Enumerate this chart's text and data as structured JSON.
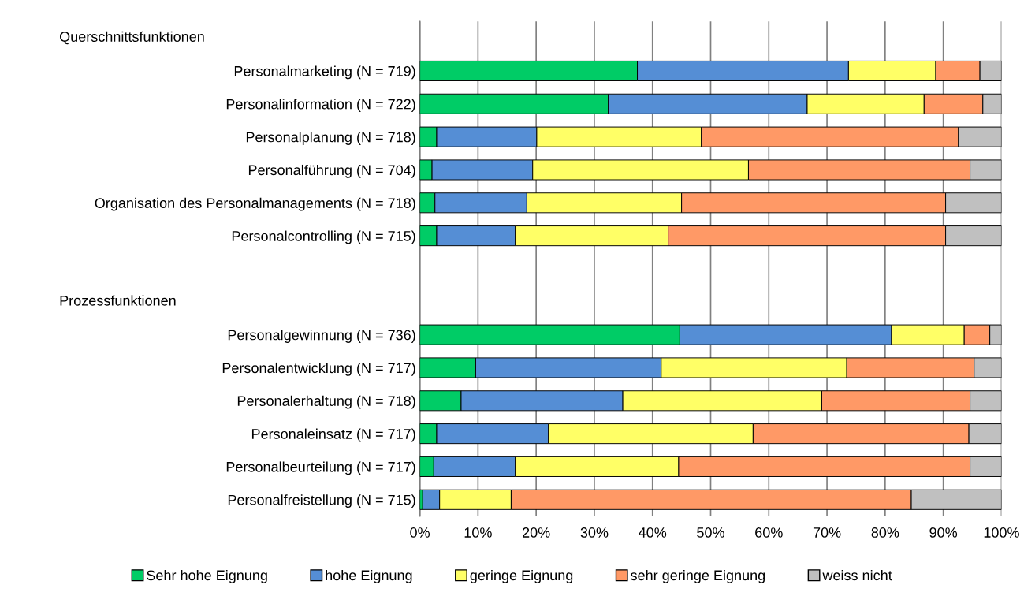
{
  "chart_data": {
    "type": "bar",
    "orientation": "horizontal",
    "stacked": true,
    "annotations": [
      "Querschnittsfunktionen",
      "Prozessfunktionen"
    ],
    "categories": [
      null,
      "Personalmarketing (N = 719)",
      "Personalinformation (N = 722)",
      "Personalplanung (N = 718)",
      "Personalführung (N = 704)",
      "Organisation des Personalmanagements (N = 718)",
      "Personalcontrolling (N = 715)",
      null,
      null,
      "Personalgewinnung (N = 736)",
      "Personalentwicklung (N = 717)",
      "Personalerhaltung (N = 718)",
      "Personaleinsatz (N = 717)",
      "Personalbeurteilung (N = 717)",
      "Personalfreistellung (N = 715)"
    ],
    "series": [
      {
        "name": "Sehr hohe Eignung",
        "color": "#00cc66",
        "values": [
          null,
          37.4,
          32.4,
          2.9,
          2.1,
          2.6,
          2.9,
          null,
          null,
          44.7,
          9.6,
          7.1,
          2.9,
          2.4,
          0.5
        ]
      },
      {
        "name": "hohe Eignung",
        "color": "#558ed5",
        "values": [
          null,
          36.3,
          34.2,
          17.2,
          17.3,
          15.8,
          13.5,
          null,
          null,
          36.4,
          31.9,
          27.8,
          19.2,
          14.0,
          2.9
        ]
      },
      {
        "name": "geringe Eignung",
        "color": "#ffff66",
        "values": [
          null,
          15.0,
          20.1,
          28.3,
          37.1,
          26.6,
          26.3,
          null,
          null,
          12.5,
          31.9,
          34.2,
          35.2,
          28.1,
          12.3
        ]
      },
      {
        "name": "sehr geringe Eignung",
        "color": "#ff9966",
        "values": [
          null,
          7.6,
          10.1,
          44.2,
          38.1,
          45.4,
          47.7,
          null,
          null,
          4.4,
          21.9,
          25.5,
          37.1,
          50.1,
          68.8
        ]
      },
      {
        "name": "weiss nicht",
        "color": "#c0c0c0",
        "values": [
          null,
          3.7,
          3.2,
          7.4,
          5.4,
          9.6,
          9.6,
          null,
          null,
          2.0,
          4.7,
          5.4,
          5.6,
          5.4,
          15.5
        ]
      }
    ],
    "xlim": [
      0,
      100
    ],
    "xticks": [
      {
        "value": 0,
        "label": "0%"
      },
      {
        "value": 10,
        "label": "10%"
      },
      {
        "value": 20,
        "label": "20%"
      },
      {
        "value": 30,
        "label": "30%"
      },
      {
        "value": 40,
        "label": "40%"
      },
      {
        "value": 50,
        "label": "50%"
      },
      {
        "value": 60,
        "label": "60%"
      },
      {
        "value": 70,
        "label": "70%"
      },
      {
        "value": 80,
        "label": "80%"
      },
      {
        "value": 90,
        "label": "90%"
      },
      {
        "value": 100,
        "label": "100%"
      }
    ],
    "grid": "x",
    "legend": "bottom"
  }
}
